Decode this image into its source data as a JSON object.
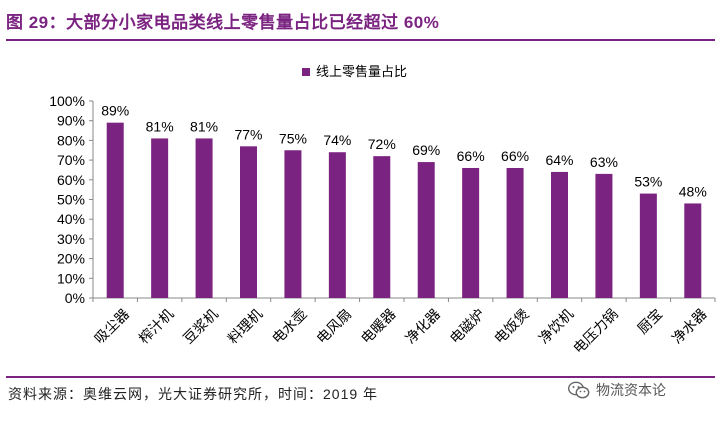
{
  "figure": {
    "title": "图 29：大部分小家电品类线上零售量占比已经超过 60%"
  },
  "source": {
    "text": "资料来源：奥维云网，光大证券研究所，时间：2019 年"
  },
  "watermark": {
    "text": "物流资本论",
    "icon": "wechat-icon"
  },
  "colors": {
    "accent": "#7B2381",
    "bar": "#7B2381"
  },
  "chart_data": {
    "type": "bar",
    "title": "",
    "xlabel": "",
    "ylabel": "",
    "categories": [
      "吸尘器",
      "榨汁机",
      "豆浆机",
      "料理机",
      "电水壶",
      "电风扇",
      "电暖器",
      "净化器",
      "电磁炉",
      "电饭煲",
      "净饮机",
      "电压力锅",
      "厨宝",
      "净水器"
    ],
    "series": [
      {
        "name": "线上零售量占比",
        "values": [
          89,
          81,
          81,
          77,
          75,
          74,
          72,
          69,
          66,
          66,
          64,
          63,
          53,
          48
        ]
      }
    ],
    "value_labels": [
      "89%",
      "81%",
      "81%",
      "77%",
      "75%",
      "74%",
      "72%",
      "69%",
      "66%",
      "66%",
      "64%",
      "63%",
      "53%",
      "48%"
    ],
    "ylim": [
      0,
      100
    ],
    "yticks": [
      "0%",
      "10%",
      "20%",
      "30%",
      "40%",
      "50%",
      "60%",
      "70%",
      "80%",
      "90%",
      "100%"
    ],
    "grid": false,
    "legend": "top-center"
  }
}
